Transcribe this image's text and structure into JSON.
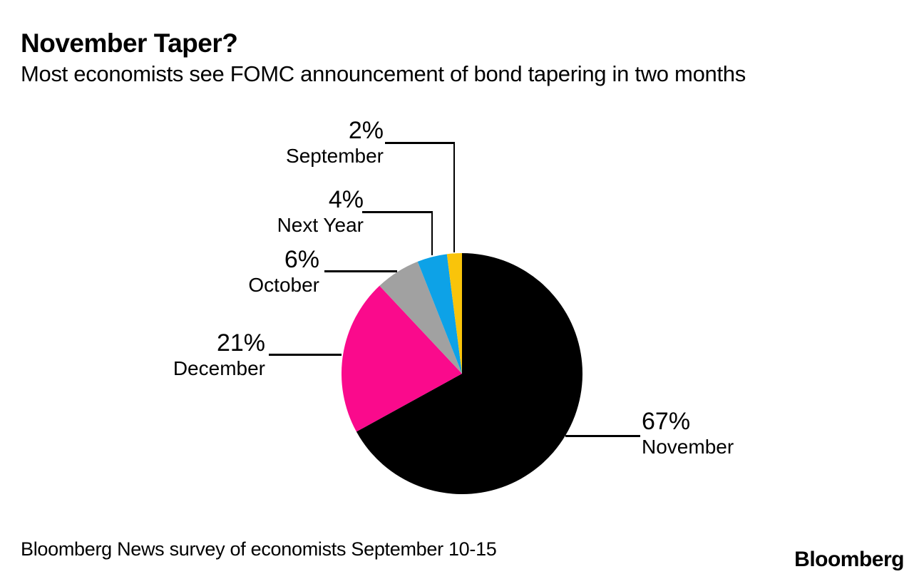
{
  "header": {
    "title": "November Taper?",
    "subtitle": "Most economists see FOMC announcement of bond tapering in two months"
  },
  "footer": {
    "source": "Bloomberg News survey of economists September 10-15",
    "logo": "Bloomberg"
  },
  "chart_data": {
    "type": "pie",
    "title": "November Taper?",
    "subtitle": "Most economists see FOMC announcement of bond tapering in two months",
    "source": "Bloomberg News survey of economists September 10-15",
    "start_angle_deg": 0,
    "direction": "clockwise",
    "legend_position": "callout-labels",
    "slices": [
      {
        "label": "November",
        "value_pct": 67,
        "display": "67%",
        "color": "#000000"
      },
      {
        "label": "December",
        "value_pct": 21,
        "display": "21%",
        "color": "#FA0A8C"
      },
      {
        "label": "October",
        "value_pct": 6,
        "display": "6%",
        "color": "#A1A1A1"
      },
      {
        "label": "Next Year",
        "value_pct": 4,
        "display": "4%",
        "color": "#0DA2E7"
      },
      {
        "label": "September",
        "value_pct": 2,
        "display": "2%",
        "color": "#F9C40A"
      }
    ]
  }
}
